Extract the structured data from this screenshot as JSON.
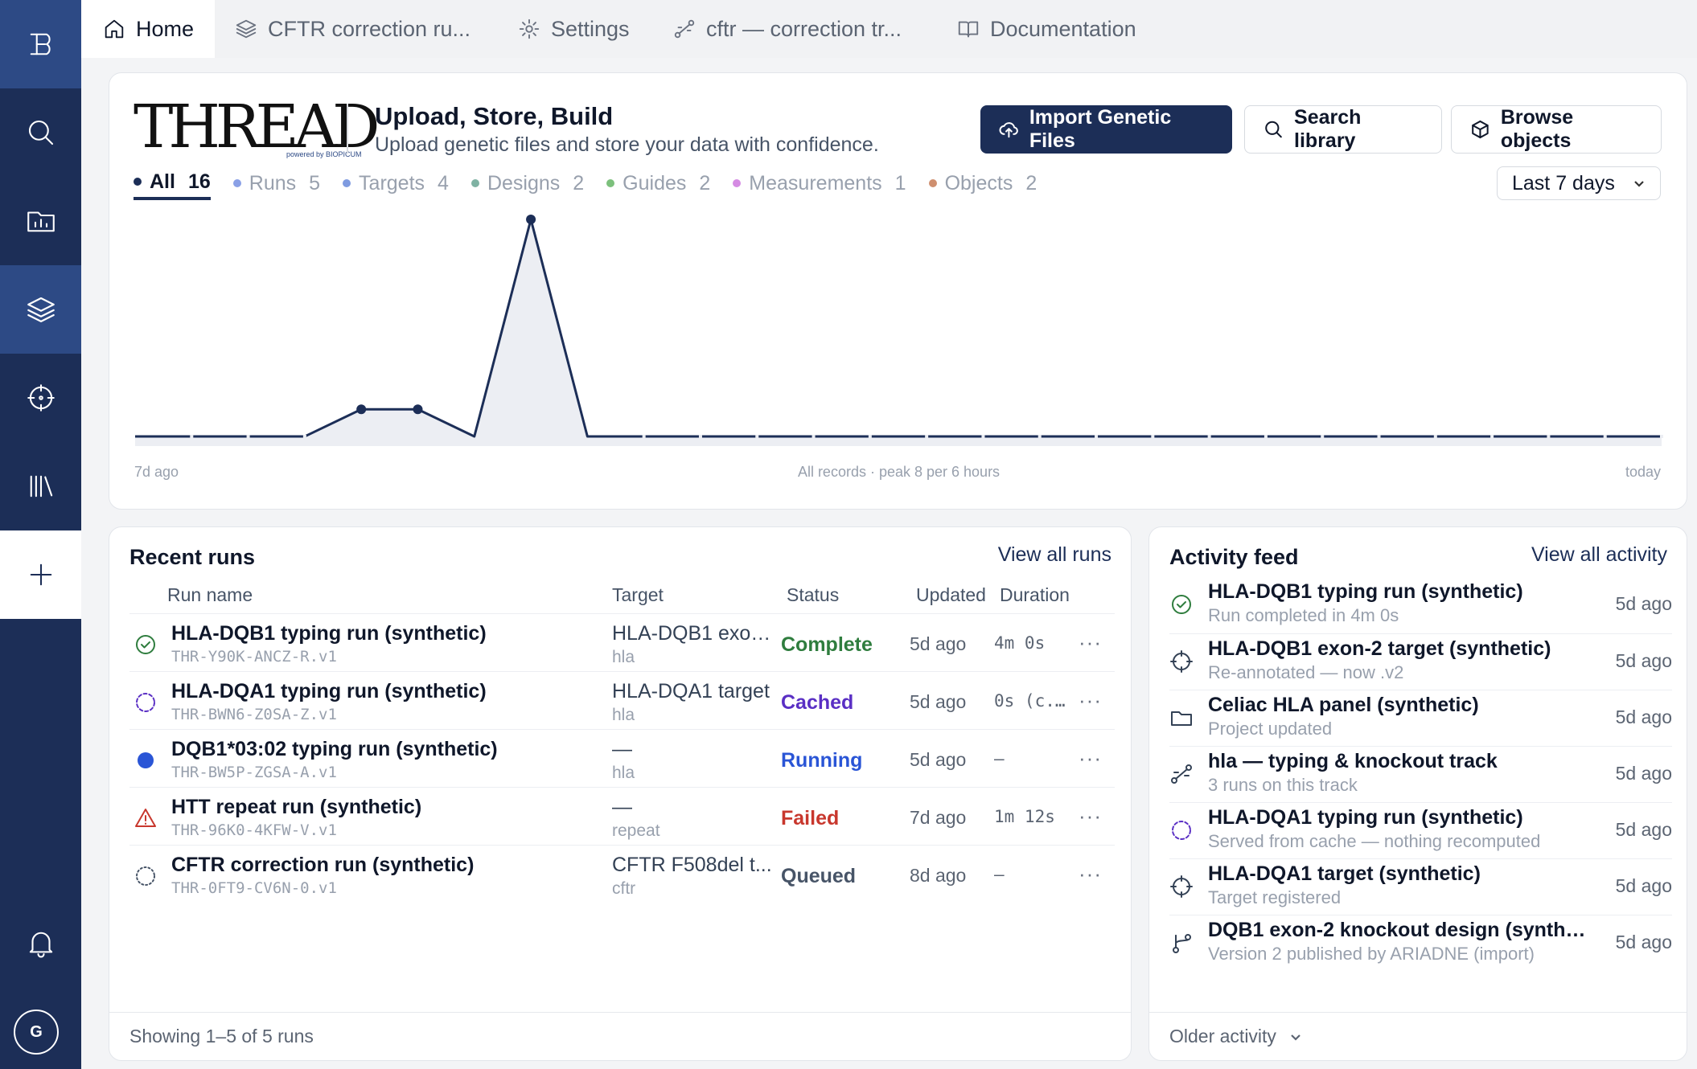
{
  "colors": {
    "sidebar": "#1c2e57",
    "sidebar_active": "#2d4a85",
    "primary": "#1c2e57",
    "complete": "#2f7d3e",
    "cached": "#5a2fc4",
    "running": "#2a55d6",
    "failed": "#c8372d",
    "queued": "#475467"
  },
  "sidebar": {
    "logo_icon": "brand-logo-icon",
    "items": [
      {
        "icon": "search-icon"
      },
      {
        "icon": "folder-chart-icon"
      },
      {
        "icon": "layers-icon"
      },
      {
        "icon": "target-icon"
      },
      {
        "icon": "library-icon"
      },
      {
        "icon": "plus-icon"
      }
    ],
    "bell_icon": "bell-icon",
    "avatar_initial": "G"
  },
  "tabs": [
    {
      "label": "Home",
      "icon": "home-icon"
    },
    {
      "label": "CFTR correction ru...",
      "icon": "layers-icon"
    },
    {
      "label": "Settings",
      "icon": "gear-icon"
    },
    {
      "label": "cftr — correction tr...",
      "icon": "track-icon"
    },
    {
      "label": "Documentation",
      "icon": "book-icon"
    }
  ],
  "hero": {
    "logo_text": "THREAD",
    "logo_tagline": "powered by BIOPICUM",
    "title": "Upload, Store, Build",
    "subtitle": "Upload genetic files and store your data with confidence.",
    "import_label": "Import Genetic Files",
    "search_label": "Search library",
    "browse_label": "Browse objects"
  },
  "filters": [
    {
      "label": "All",
      "count": "16",
      "color": "#1c2e57"
    },
    {
      "label": "Runs",
      "count": "5",
      "color": "#8aa0e6"
    },
    {
      "label": "Targets",
      "count": "4",
      "color": "#7f9be0"
    },
    {
      "label": "Designs",
      "count": "2",
      "color": "#7fb2a3"
    },
    {
      "label": "Guides",
      "count": "2",
      "color": "#7cc07c"
    },
    {
      "label": "Measurements",
      "count": "1",
      "color": "#d58be3"
    },
    {
      "label": "Objects",
      "count": "2",
      "color": "#cf8f6f"
    }
  ],
  "range_select": "Last 7 days",
  "chart_data": {
    "type": "area",
    "x_start_label": "7d ago",
    "x_end_label": "today",
    "caption": "All records · peak 8 per 6 hours",
    "values": [
      0,
      0,
      0,
      0,
      1,
      1,
      0,
      8,
      0,
      0,
      0,
      0,
      0,
      0,
      0,
      0,
      0,
      0,
      0,
      0,
      0,
      0,
      0,
      0,
      0,
      0,
      0,
      0
    ],
    "ylim": [
      0,
      8
    ]
  },
  "runs": {
    "title": "Recent runs",
    "view_all": "View all runs",
    "columns": [
      "Run name",
      "Target",
      "Status",
      "Updated",
      "Duration"
    ],
    "rows": [
      {
        "icon": "check-circle-icon",
        "name": "HLA-DQB1 typing run (synthetic)",
        "id": "THR-Y90K-ANCZ-R.v1",
        "target": "HLA-DQB1 exon...",
        "target_sub": "hla",
        "status": "Complete",
        "status_color": "#2f7d3e",
        "updated": "5d ago",
        "duration": "4m 0s",
        "more": "···"
      },
      {
        "icon": "dashed-circle-icon",
        "name": "HLA-DQA1 typing run (synthetic)",
        "id": "THR-BWN6-Z0SA-Z.v1",
        "target": "HLA-DQA1 target",
        "target_sub": "hla",
        "status": "Cached",
        "status_color": "#5a2fc4",
        "updated": "5d ago",
        "duration": "0s (c...",
        "more": "···"
      },
      {
        "icon": "filled-circle-icon",
        "name": "DQB1*03:02 typing run (synthetic)",
        "id": "THR-BW5P-ZGSA-A.v1",
        "target": "—",
        "target_sub": "hla",
        "status": "Running",
        "status_color": "#2a55d6",
        "updated": "5d ago",
        "duration": "–",
        "more": "···"
      },
      {
        "icon": "warning-icon",
        "name": "HTT repeat run (synthetic)",
        "id": "THR-96K0-4KFW-V.v1",
        "target": "—",
        "target_sub": "repeat",
        "status": "Failed",
        "status_color": "#c8372d",
        "updated": "7d ago",
        "duration": "1m 12s",
        "more": "···"
      },
      {
        "icon": "dotted-circle-icon",
        "name": "CFTR correction run (synthetic)",
        "id": "THR-0FT9-CV6N-0.v1",
        "target": "CFTR F508del t...",
        "target_sub": "cftr",
        "status": "Queued",
        "status_color": "#475467",
        "updated": "8d ago",
        "duration": "–",
        "more": "···"
      }
    ],
    "footer": "Showing 1–5 of 5 runs"
  },
  "activity": {
    "title": "Activity feed",
    "view_all": "View all activity",
    "items": [
      {
        "icon": "check-circle-icon",
        "title": "HLA-DQB1 typing run (synthetic)",
        "sub": "Run completed in 4m 0s",
        "time": "5d ago"
      },
      {
        "icon": "target-icon",
        "title": "HLA-DQB1 exon-2 target (synthetic)",
        "sub": "Re-annotated — now .v2",
        "time": "5d ago"
      },
      {
        "icon": "folder-icon",
        "title": "Celiac HLA panel (synthetic)",
        "sub": "Project updated",
        "time": "5d ago"
      },
      {
        "icon": "track-icon",
        "title": "hla — typing & knockout track",
        "sub": "3 runs on this track",
        "time": "5d ago"
      },
      {
        "icon": "dashed-circle-icon",
        "title": "HLA-DQA1 typing run (synthetic)",
        "sub": "Served from cache — nothing recomputed",
        "time": "5d ago"
      },
      {
        "icon": "target-icon",
        "title": "HLA-DQA1 target (synthetic)",
        "sub": "Target registered",
        "time": "5d ago"
      },
      {
        "icon": "branch-icon",
        "title": "DQB1 exon-2 knockout design (synthetic)",
        "sub": "Version 2 published by ARIADNE (import)",
        "time": "5d ago"
      }
    ],
    "older": "Older activity"
  }
}
